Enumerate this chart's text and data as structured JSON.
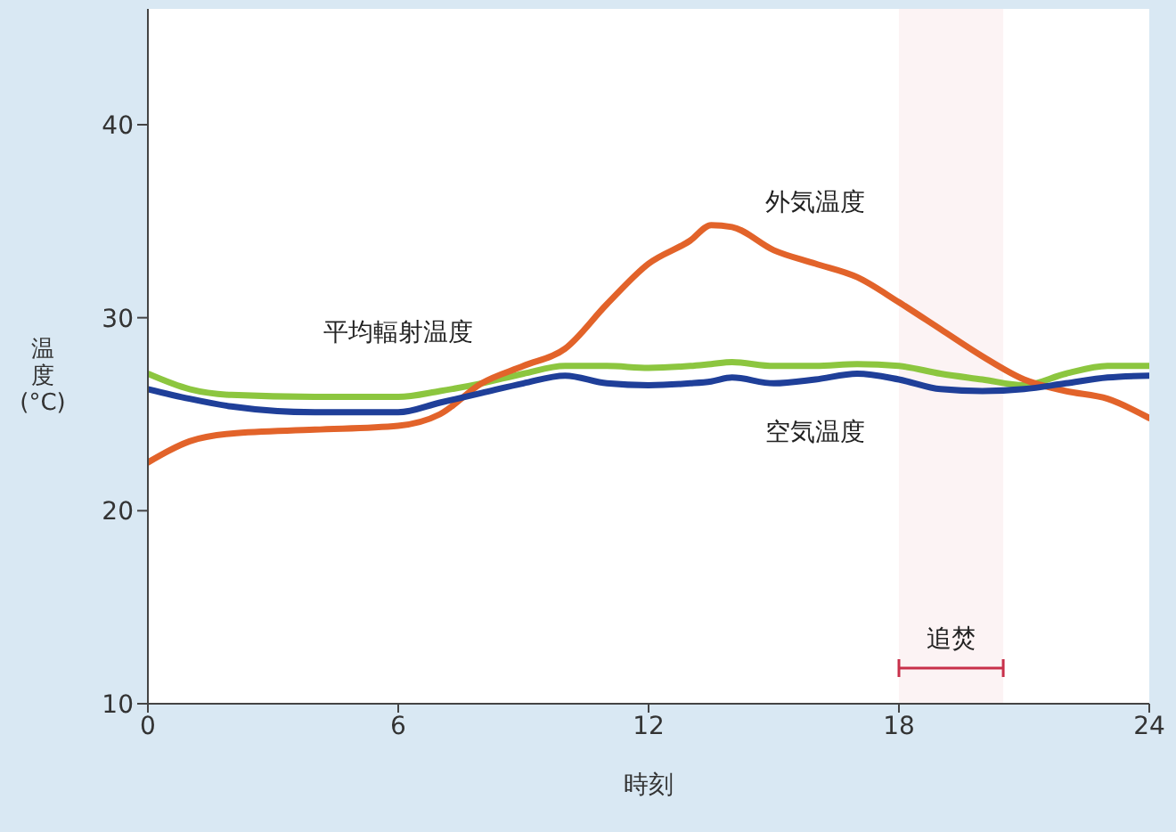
{
  "chart_data": {
    "type": "line",
    "xlabel": "時刻",
    "ylabel": "温度(°C)",
    "x": [
      0,
      1,
      2,
      4,
      6,
      7,
      8,
      9,
      10,
      11,
      12,
      13,
      13.5,
      14,
      15,
      16,
      17,
      18,
      19,
      20,
      21,
      22,
      23,
      24
    ],
    "series": [
      {
        "name": "平均輻射温度",
        "color": "#8cc63f",
        "values": [
          27.1,
          26.3,
          26,
          25.9,
          25.9,
          26.2,
          26.6,
          27.1,
          27.5,
          27.5,
          27.4,
          27.5,
          27.6,
          27.7,
          27.5,
          27.5,
          27.6,
          27.5,
          27.1,
          26.8,
          26.5,
          27.1,
          27.5,
          27.5
        ]
      },
      {
        "name": "外気温度",
        "color": "#e2632a",
        "values": [
          22.5,
          23.6,
          24,
          24.2,
          24.4,
          25,
          26.6,
          27.5,
          28.4,
          30.7,
          32.8,
          34,
          34.8,
          34.7,
          33.5,
          32.8,
          32.1,
          30.8,
          29.4,
          28,
          26.8,
          26.2,
          25.8,
          24.8
        ]
      },
      {
        "name": "空気温度",
        "color": "#1f3f99",
        "values": [
          26.3,
          25.8,
          25.4,
          25.1,
          25.1,
          25.6,
          26.1,
          26.6,
          27,
          26.6,
          26.5,
          26.6,
          26.7,
          26.9,
          26.6,
          26.8,
          27.1,
          26.8,
          26.3,
          26.2,
          26.3,
          26.6,
          26.9,
          27
        ]
      }
    ],
    "xlim": [
      0,
      24
    ],
    "xticks": [
      0,
      6,
      12,
      18,
      24
    ],
    "ylim": [
      10,
      46
    ],
    "yticks": [
      10,
      20,
      30,
      40
    ],
    "bands": [
      {
        "axis": "x",
        "from": 18,
        "to": 20.5,
        "label": "追焚",
        "color": "#c8304a"
      }
    ]
  }
}
